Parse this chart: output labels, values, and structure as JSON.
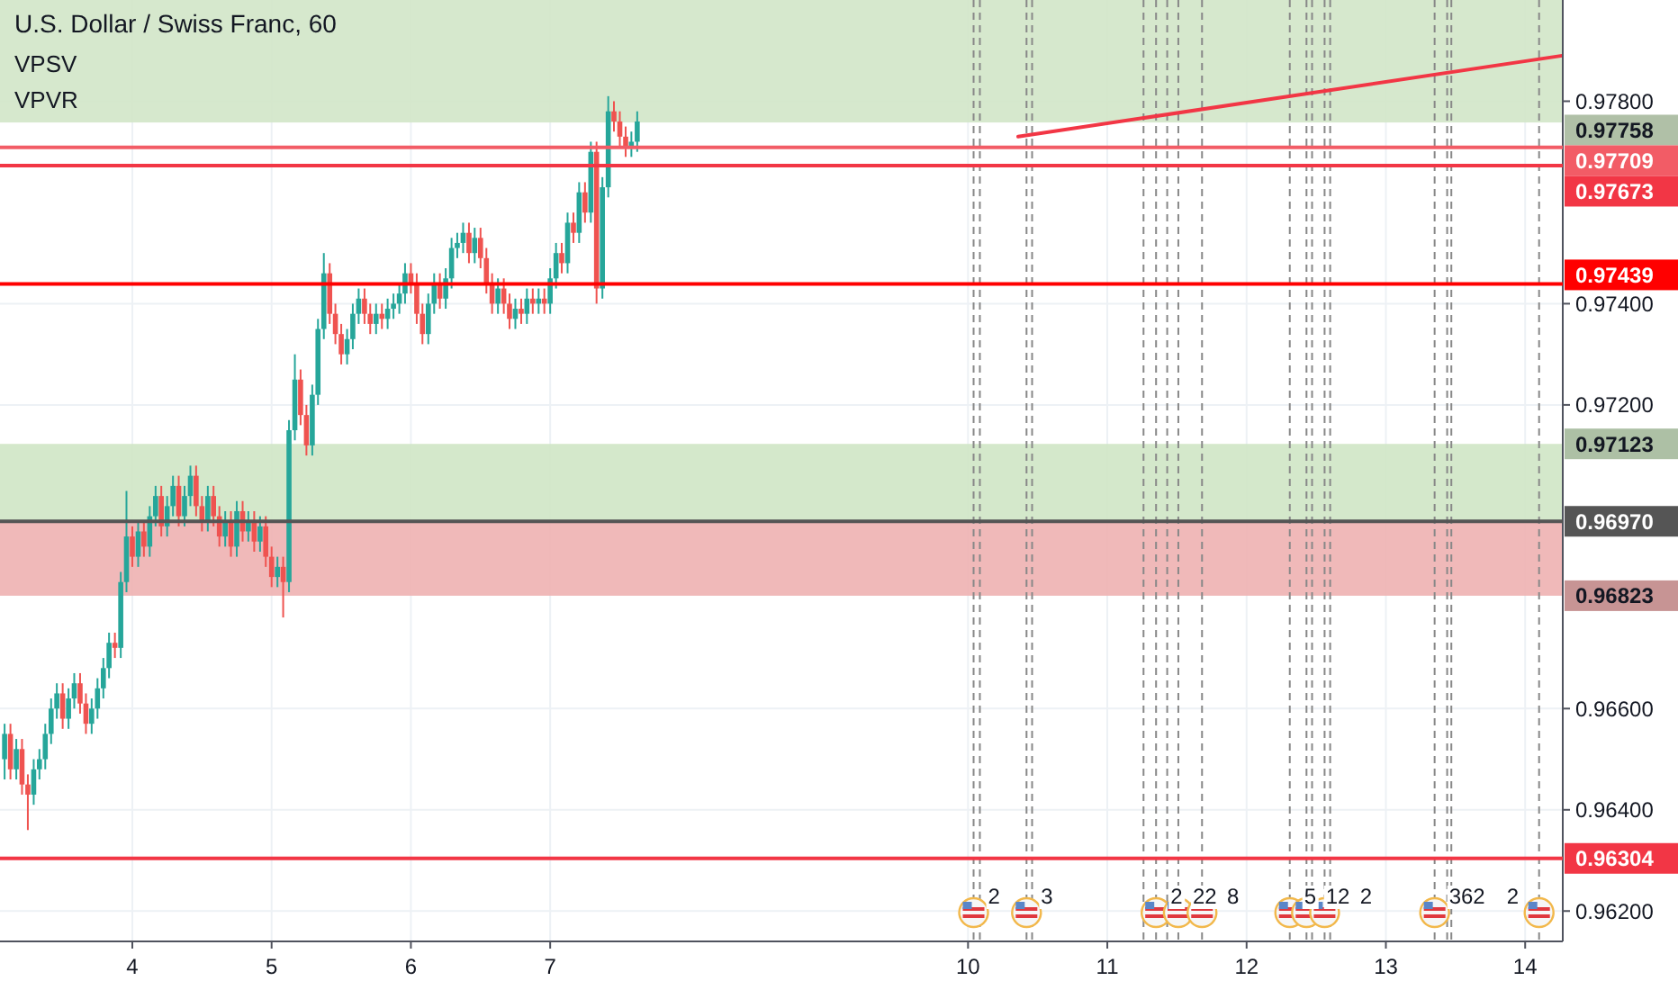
{
  "chart_data": {
    "type": "candlestick",
    "title": "U.S. Dollar / Swiss Franc, 60",
    "annotations": [
      "VPSV",
      "VPVR",
      {
        "text": "2",
        "x": 10.04
      },
      {
        "text": "3",
        "x": 10.42
      },
      {
        "text": "2",
        "x": 11.35
      },
      {
        "text": "22",
        "x": 11.51
      },
      {
        "text": "8",
        "x": 11.68
      },
      {
        "text": "5",
        "x": 12.31
      },
      {
        "text": "12",
        "x": 12.43
      },
      {
        "text": "2",
        "x": 12.56
      },
      {
        "text": "362",
        "x": 13.35
      },
      {
        "text": "2",
        "x": 14.1
      }
    ],
    "x": [
      3.083,
      3.125,
      3.167,
      3.208,
      3.25,
      3.292,
      3.333,
      3.375,
      3.417,
      3.458,
      3.5,
      3.542,
      3.583,
      3.625,
      3.667,
      3.708,
      3.75,
      3.792,
      3.833,
      3.875,
      3.917,
      3.958,
      4,
      4.042,
      4.083,
      4.125,
      4.167,
      4.208,
      4.25,
      4.292,
      4.333,
      4.375,
      4.417,
      4.458,
      4.5,
      4.542,
      4.583,
      4.625,
      4.667,
      4.708,
      4.75,
      4.792,
      4.833,
      4.875,
      4.917,
      4.958,
      5,
      5.042,
      5.083,
      5.125,
      5.167,
      5.208,
      5.25,
      5.292,
      5.333,
      5.375,
      5.417,
      5.458,
      5.5,
      5.542,
      5.583,
      5.625,
      5.667,
      5.708,
      5.75,
      5.792,
      5.833,
      5.875,
      5.917,
      5.958,
      6,
      6.042,
      6.083,
      6.125,
      6.167,
      6.208,
      6.25,
      6.292,
      6.333,
      6.375,
      6.417,
      6.458,
      6.5,
      6.542,
      6.583,
      6.625,
      6.667,
      6.708,
      6.75,
      6.792,
      6.833,
      6.875,
      6.917,
      6.958,
      7,
      7.042,
      7.083,
      7.125,
      7.167,
      7.208,
      7.25,
      7.292,
      7.333,
      7.375,
      7.417,
      7.458,
      7.5,
      7.542,
      7.583,
      7.625
    ],
    "ohlc": [
      [
        0.965,
        0.9657,
        0.9646,
        0.9655
      ],
      [
        0.9655,
        0.9657,
        0.9646,
        0.9648
      ],
      [
        0.9648,
        0.9654,
        0.9646,
        0.9652
      ],
      [
        0.9652,
        0.9654,
        0.9643,
        0.9645
      ],
      [
        0.9645,
        0.9647,
        0.9636,
        0.9643
      ],
      [
        0.9643,
        0.965,
        0.9641,
        0.9648
      ],
      [
        0.9648,
        0.9652,
        0.9646,
        0.965
      ],
      [
        0.965,
        0.9657,
        0.9648,
        0.9655
      ],
      [
        0.9655,
        0.9662,
        0.9653,
        0.966
      ],
      [
        0.966,
        0.9665,
        0.9658,
        0.9663
      ],
      [
        0.9663,
        0.9665,
        0.9656,
        0.9658
      ],
      [
        0.9658,
        0.9664,
        0.9656,
        0.9662
      ],
      [
        0.9662,
        0.9667,
        0.966,
        0.9665
      ],
      [
        0.9665,
        0.9667,
        0.9659,
        0.9661
      ],
      [
        0.9661,
        0.9663,
        0.9655,
        0.9657
      ],
      [
        0.9657,
        0.9662,
        0.9655,
        0.966
      ],
      [
        0.966,
        0.9666,
        0.9658,
        0.9664
      ],
      [
        0.9664,
        0.967,
        0.9662,
        0.9668
      ],
      [
        0.9668,
        0.9675,
        0.9666,
        0.9673
      ],
      [
        0.9673,
        0.9675,
        0.967,
        0.9672
      ],
      [
        0.9672,
        0.9687,
        0.967,
        0.9685
      ],
      [
        0.9685,
        0.9703,
        0.9683,
        0.9694
      ],
      [
        0.9694,
        0.9696,
        0.9688,
        0.969
      ],
      [
        0.969,
        0.9697,
        0.9688,
        0.9695
      ],
      [
        0.9695,
        0.9697,
        0.969,
        0.9692
      ],
      [
        0.9692,
        0.97,
        0.969,
        0.9698
      ],
      [
        0.9698,
        0.9704,
        0.9696,
        0.9702
      ],
      [
        0.9702,
        0.9704,
        0.9694,
        0.9696
      ],
      [
        0.9696,
        0.9702,
        0.9694,
        0.97
      ],
      [
        0.97,
        0.9706,
        0.9698,
        0.9704
      ],
      [
        0.9704,
        0.9706,
        0.9696,
        0.9698
      ],
      [
        0.9698,
        0.9704,
        0.9696,
        0.9702
      ],
      [
        0.9702,
        0.9708,
        0.97,
        0.9706
      ],
      [
        0.9706,
        0.9708,
        0.9698,
        0.97
      ],
      [
        0.97,
        0.9702,
        0.9695,
        0.9697
      ],
      [
        0.9697,
        0.9704,
        0.9695,
        0.9702
      ],
      [
        0.9702,
        0.9704,
        0.9696,
        0.9698
      ],
      [
        0.9698,
        0.97,
        0.9692,
        0.9694
      ],
      [
        0.9694,
        0.9699,
        0.9692,
        0.9697
      ],
      [
        0.9697,
        0.9699,
        0.969,
        0.9692
      ],
      [
        0.9692,
        0.9701,
        0.969,
        0.9699
      ],
      [
        0.9699,
        0.9701,
        0.9693,
        0.9695
      ],
      [
        0.9695,
        0.9699,
        0.9693,
        0.9697
      ],
      [
        0.9697,
        0.9699,
        0.9691,
        0.9693
      ],
      [
        0.9693,
        0.9698,
        0.9691,
        0.9696
      ],
      [
        0.9696,
        0.9698,
        0.9688,
        0.969
      ],
      [
        0.969,
        0.9692,
        0.9684,
        0.9686
      ],
      [
        0.9686,
        0.969,
        0.9684,
        0.9688
      ],
      [
        0.9688,
        0.969,
        0.9678,
        0.9685
      ],
      [
        0.9685,
        0.9717,
        0.9683,
        0.9715
      ],
      [
        0.9715,
        0.973,
        0.9713,
        0.9725
      ],
      [
        0.9725,
        0.9727,
        0.9716,
        0.9718
      ],
      [
        0.9718,
        0.972,
        0.971,
        0.9712
      ],
      [
        0.9712,
        0.9724,
        0.971,
        0.9722
      ],
      [
        0.9722,
        0.9737,
        0.972,
        0.9735
      ],
      [
        0.9735,
        0.975,
        0.9733,
        0.9746
      ],
      [
        0.9746,
        0.9748,
        0.9736,
        0.9738
      ],
      [
        0.9738,
        0.974,
        0.9732,
        0.9734
      ],
      [
        0.9734,
        0.9736,
        0.9728,
        0.973
      ],
      [
        0.973,
        0.9735,
        0.9728,
        0.9733
      ],
      [
        0.9733,
        0.974,
        0.9731,
        0.9738
      ],
      [
        0.9738,
        0.9743,
        0.9736,
        0.9741
      ],
      [
        0.9741,
        0.9743,
        0.9736,
        0.9738
      ],
      [
        0.9738,
        0.974,
        0.9734,
        0.9736
      ],
      [
        0.9736,
        0.974,
        0.9734,
        0.9738
      ],
      [
        0.9738,
        0.974,
        0.9735,
        0.9737
      ],
      [
        0.9737,
        0.9741,
        0.9735,
        0.9739
      ],
      [
        0.9739,
        0.9742,
        0.9737,
        0.974
      ],
      [
        0.974,
        0.9744,
        0.9738,
        0.9742
      ],
      [
        0.9742,
        0.9748,
        0.974,
        0.9746
      ],
      [
        0.9746,
        0.9748,
        0.9742,
        0.9744
      ],
      [
        0.9744,
        0.9746,
        0.9736,
        0.9738
      ],
      [
        0.9738,
        0.974,
        0.9732,
        0.9734
      ],
      [
        0.9734,
        0.9742,
        0.9732,
        0.974
      ],
      [
        0.974,
        0.9746,
        0.9738,
        0.9744
      ],
      [
        0.9744,
        0.9746,
        0.9739,
        0.9741
      ],
      [
        0.9741,
        0.9747,
        0.9739,
        0.9745
      ],
      [
        0.9745,
        0.9753,
        0.9743,
        0.9751
      ],
      [
        0.9751,
        0.9754,
        0.9749,
        0.9752
      ],
      [
        0.9752,
        0.9756,
        0.975,
        0.9754
      ],
      [
        0.9754,
        0.9756,
        0.9748,
        0.975
      ],
      [
        0.975,
        0.9755,
        0.9748,
        0.9753
      ],
      [
        0.9753,
        0.9755,
        0.9747,
        0.9749
      ],
      [
        0.9749,
        0.9751,
        0.9742,
        0.9744
      ],
      [
        0.9744,
        0.9746,
        0.9738,
        0.974
      ],
      [
        0.974,
        0.9745,
        0.9738,
        0.9743
      ],
      [
        0.9743,
        0.9745,
        0.9738,
        0.974
      ],
      [
        0.974,
        0.9742,
        0.9735,
        0.9737
      ],
      [
        0.9737,
        0.9741,
        0.9735,
        0.9739
      ],
      [
        0.9739,
        0.9741,
        0.9736,
        0.9738
      ],
      [
        0.9738,
        0.9743,
        0.9736,
        0.9741
      ],
      [
        0.9741,
        0.9743,
        0.9738,
        0.974
      ],
      [
        0.974,
        0.9743,
        0.9738,
        0.9741
      ],
      [
        0.9741,
        0.9743,
        0.9738,
        0.974
      ],
      [
        0.974,
        0.9747,
        0.9738,
        0.9745
      ],
      [
        0.9745,
        0.9752,
        0.9743,
        0.975
      ],
      [
        0.975,
        0.9752,
        0.9746,
        0.9748
      ],
      [
        0.9748,
        0.9758,
        0.9746,
        0.9756
      ],
      [
        0.9756,
        0.9758,
        0.9752,
        0.9754
      ],
      [
        0.9754,
        0.9764,
        0.9752,
        0.9762
      ],
      [
        0.9762,
        0.9764,
        0.9756,
        0.9758
      ],
      [
        0.9758,
        0.9772,
        0.9756,
        0.977
      ],
      [
        0.977,
        0.9772,
        0.974,
        0.9743
      ],
      [
        0.9743,
        0.9765,
        0.9741,
        0.9763
      ],
      [
        0.9763,
        0.9781,
        0.9761,
        0.9778
      ],
      [
        0.9778,
        0.978,
        0.9774,
        0.9776
      ],
      [
        0.9776,
        0.9778,
        0.9771,
        0.9773
      ],
      [
        0.9773,
        0.9775,
        0.9769,
        0.9771
      ],
      [
        0.9771,
        0.9774,
        0.9769,
        0.9772
      ],
      [
        0.9772,
        0.9778,
        0.977,
        0.9776
      ]
    ],
    "series": [
      {
        "type": "line",
        "x": [
          10.36,
          14.265
        ],
        "values": [
          0.9773,
          0.9789
        ],
        "color": "#f23645"
      }
    ],
    "xlim": [
      3.05,
      14.27
    ],
    "xticks": [
      4,
      5,
      6,
      7,
      10,
      11,
      12,
      13,
      14
    ],
    "ylim": [
      0.9614,
      0.98
    ],
    "yticks": [
      {
        "value": 0.962,
        "label": "0.96200"
      },
      {
        "value": 0.964,
        "label": "0.96400"
      },
      {
        "value": 0.966,
        "label": "0.96600"
      },
      {
        "value": 0.972,
        "label": "0.97200"
      },
      {
        "value": 0.974,
        "label": "0.97400"
      },
      {
        "value": 0.978,
        "label": "0.97800"
      }
    ],
    "grid": true,
    "ref_lines": [
      {
        "axis": "y",
        "value": 0.97709,
        "label": "0.97709",
        "color": "#f25c66"
      },
      {
        "axis": "y",
        "value": 0.97673,
        "label": "0.97673",
        "color": "#f23645"
      },
      {
        "axis": "y",
        "value": 0.97439,
        "label": "0.97439",
        "color": "#ff0000"
      },
      {
        "axis": "y",
        "value": 0.9697,
        "label": "0.96970",
        "color": "#555555"
      },
      {
        "axis": "y",
        "value": 0.96304,
        "label": "0.96304",
        "color": "#f23645"
      },
      {
        "axis": "x",
        "value": 10.04,
        "color": "#888888",
        "line_style": "dashed"
      },
      {
        "axis": "x",
        "value": 10.085,
        "color": "#888888",
        "line_style": "dashed"
      },
      {
        "axis": "x",
        "value": 10.42,
        "color": "#888888",
        "line_style": "dashed"
      },
      {
        "axis": "x",
        "value": 10.46,
        "color": "#888888",
        "line_style": "dashed"
      },
      {
        "axis": "x",
        "value": 11.26,
        "color": "#888888",
        "line_style": "dashed"
      },
      {
        "axis": "x",
        "value": 11.35,
        "color": "#888888",
        "line_style": "dashed"
      },
      {
        "axis": "x",
        "value": 11.43,
        "color": "#888888",
        "line_style": "dashed"
      },
      {
        "axis": "x",
        "value": 11.51,
        "color": "#888888",
        "line_style": "dashed"
      },
      {
        "axis": "x",
        "value": 11.68,
        "color": "#888888",
        "line_style": "dashed"
      },
      {
        "axis": "x",
        "value": 12.31,
        "color": "#888888",
        "line_style": "dashed"
      },
      {
        "axis": "x",
        "value": 12.43,
        "color": "#888888",
        "line_style": "dashed"
      },
      {
        "axis": "x",
        "value": 12.47,
        "color": "#888888",
        "line_style": "dashed"
      },
      {
        "axis": "x",
        "value": 12.56,
        "color": "#888888",
        "line_style": "dashed"
      },
      {
        "axis": "x",
        "value": 12.6,
        "color": "#888888",
        "line_style": "dashed"
      },
      {
        "axis": "x",
        "value": 13.35,
        "color": "#888888",
        "line_style": "dashed"
      },
      {
        "axis": "x",
        "value": 13.44,
        "color": "#888888",
        "line_style": "dashed"
      },
      {
        "axis": "x",
        "value": 13.47,
        "color": "#888888",
        "line_style": "dashed"
      },
      {
        "axis": "x",
        "value": 14.1,
        "color": "#888888",
        "line_style": "dashed"
      }
    ],
    "bands": [
      {
        "axis": "y",
        "from": 0.97758,
        "to": 0.98,
        "label": "0.97758",
        "color": "#d2e6c8"
      },
      {
        "axis": "y",
        "from": 0.97123,
        "to": 0.9697,
        "label": "0.97123",
        "color": "#cfe5c5"
      },
      {
        "axis": "y",
        "from": 0.96823,
        "to": 0.9697,
        "label": "0.96823",
        "color": "#eeb1b1"
      }
    ]
  }
}
